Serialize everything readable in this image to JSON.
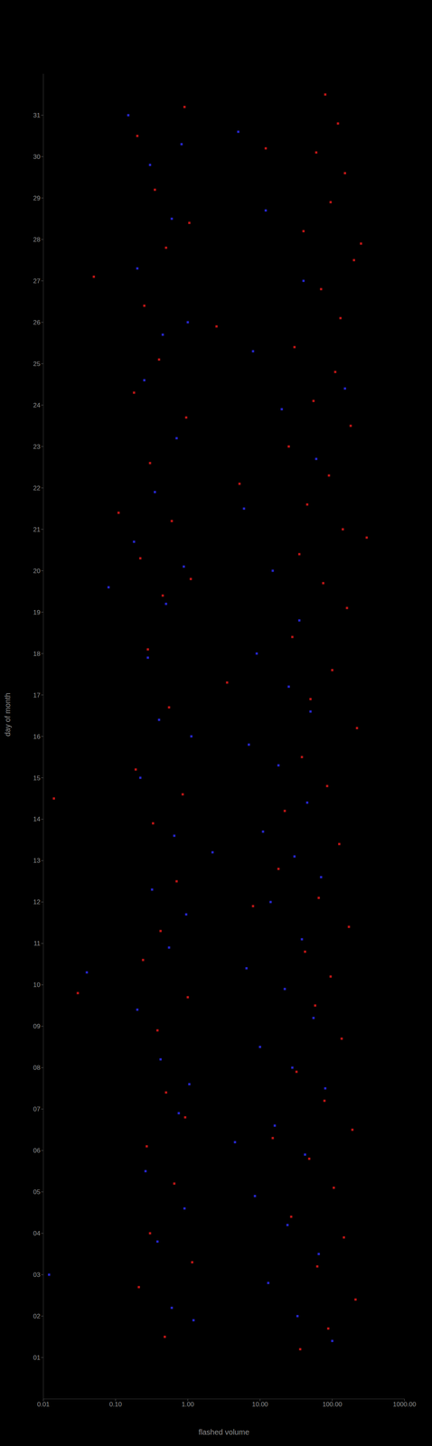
{
  "chart_data": {
    "type": "scatter",
    "x_label": "flashed volume",
    "y_label": "day of month",
    "log": "x",
    "grid": false,
    "xlim": [
      0.01,
      1000
    ],
    "xticks": [
      {
        "value": 0.01,
        "label": "0.01"
      },
      {
        "value": 0.1,
        "label": "0.10"
      },
      {
        "value": 1,
        "label": "1.00"
      },
      {
        "value": 10,
        "label": "10.00"
      },
      {
        "value": 100,
        "label": "100.00"
      },
      {
        "value": 1000,
        "label": "1000.00"
      }
    ],
    "ylim": [
      0,
      32
    ],
    "yticks": [
      {
        "value": 1,
        "label": "01"
      },
      {
        "value": 2,
        "label": "02"
      },
      {
        "value": 3,
        "label": "03"
      },
      {
        "value": 4,
        "label": "04"
      },
      {
        "value": 5,
        "label": "05"
      },
      {
        "value": 6,
        "label": "06"
      },
      {
        "value": 7,
        "label": "07"
      },
      {
        "value": 8,
        "label": "08"
      },
      {
        "value": 9,
        "label": "09"
      },
      10,
      11,
      12,
      13,
      14,
      15,
      16,
      17,
      18,
      19,
      20,
      21,
      22,
      23,
      24,
      25,
      26,
      27,
      28,
      29,
      30,
      31
    ],
    "series": [
      {
        "color": "#d01818",
        "x": [
          0.2,
          0.35,
          0.5,
          0.25,
          0.4,
          0.18,
          0.3,
          0.6,
          0.22,
          0.45,
          0.28,
          0.55,
          0.19,
          0.33,
          0.7,
          0.42,
          0.24,
          0.38,
          0.5,
          0.27,
          0.65,
          0.3,
          0.21,
          0.48,
          0.9,
          1.05,
          0.95,
          1.1,
          0.85,
          1.0,
          0.92,
          1.15,
          80,
          120,
          60,
          150,
          95,
          40,
          200,
          70,
          130,
          30,
          110,
          55,
          180,
          25,
          90,
          45,
          140,
          35,
          75,
          160,
          28,
          100,
          50,
          220,
          38,
          85,
          22,
          125,
          65,
          170,
          42,
          95,
          58,
          135,
          32,
          78,
          190,
          48,
          105,
          27,
          145,
          62,
          210,
          88,
          36,
          5.2,
          3.5,
          8,
          0.05,
          0.03,
          0.11,
          12,
          15,
          300,
          0.014,
          2.5,
          18,
          250
        ],
        "values": [
          30.5,
          29.2,
          27.8,
          26.4,
          25.1,
          24.3,
          22.6,
          21.2,
          20.3,
          19.4,
          18.1,
          16.7,
          15.2,
          13.9,
          12.5,
          11.3,
          10.6,
          8.9,
          7.4,
          6.1,
          5.2,
          4.0,
          2.7,
          1.5,
          31.2,
          28.4,
          23.7,
          19.8,
          14.6,
          9.7,
          6.8,
          3.3,
          31.5,
          30.8,
          30.1,
          29.6,
          28.9,
          28.2,
          27.5,
          26.8,
          26.1,
          25.4,
          24.8,
          24.1,
          23.5,
          23.0,
          22.3,
          21.6,
          21.0,
          20.4,
          19.7,
          19.1,
          18.4,
          17.6,
          16.9,
          16.2,
          15.5,
          14.8,
          14.2,
          13.4,
          12.1,
          11.4,
          10.8,
          10.2,
          9.5,
          8.7,
          7.9,
          7.2,
          6.5,
          5.8,
          5.1,
          4.4,
          3.9,
          3.2,
          2.4,
          1.7,
          1.2,
          22.1,
          17.3,
          11.9,
          27.1,
          9.8,
          21.4,
          30.2,
          6.3,
          20.8,
          14.5,
          25.9,
          12.8,
          27.9
        ]
      },
      {
        "color": "#2a2ae0",
        "x": [
          0.15,
          0.3,
          0.6,
          0.2,
          0.45,
          0.25,
          0.7,
          0.35,
          0.18,
          0.5,
          0.28,
          0.4,
          0.22,
          0.65,
          0.32,
          0.55,
          0.2,
          0.42,
          0.75,
          0.26,
          0.38,
          0.6,
          0.82,
          1.0,
          0.88,
          1.12,
          0.95,
          1.05,
          0.9,
          1.2,
          5,
          12,
          40,
          8,
          20,
          60,
          6,
          15,
          35,
          9,
          25,
          50,
          7,
          18,
          45,
          11,
          30,
          70,
          14,
          38,
          6.5,
          22,
          55,
          10,
          28,
          80,
          16,
          42,
          8.5,
          24,
          65,
          13,
          33,
          100,
          4.5,
          2.2,
          0.08,
          0.04,
          0.012,
          150
        ],
        "values": [
          31.0,
          29.8,
          28.5,
          27.3,
          25.7,
          24.6,
          23.2,
          21.9,
          20.7,
          19.2,
          17.9,
          16.4,
          15.0,
          13.6,
          12.3,
          10.9,
          9.4,
          8.2,
          6.9,
          5.5,
          3.8,
          2.2,
          30.3,
          26.0,
          20.1,
          16.0,
          11.7,
          7.6,
          4.6,
          1.9,
          30.6,
          28.7,
          27.0,
          25.3,
          23.9,
          22.7,
          21.5,
          20.0,
          18.8,
          18.0,
          17.2,
          16.6,
          15.8,
          15.3,
          14.4,
          13.7,
          13.1,
          12.6,
          12.0,
          11.1,
          10.4,
          9.9,
          9.2,
          8.5,
          8.0,
          7.5,
          6.6,
          5.9,
          4.9,
          4.2,
          3.5,
          2.8,
          2.0,
          1.4,
          6.2,
          13.2,
          19.6,
          10.3,
          3.0,
          24.4
        ]
      }
    ]
  }
}
